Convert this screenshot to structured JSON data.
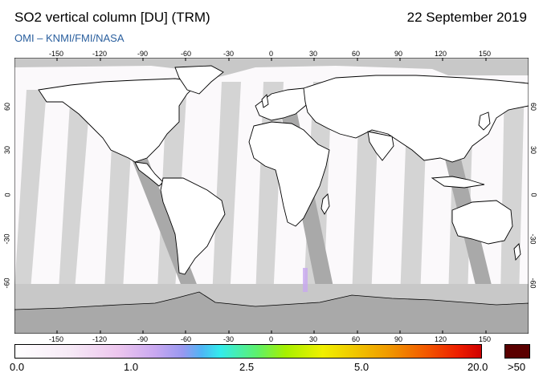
{
  "header": {
    "title": "SO2 vertical column [DU] (TRM)",
    "date": "22 September 2019",
    "credit": "OMI  –  KNMI/FMI/NASA"
  },
  "map": {
    "lon_ticks": [
      "-150",
      "-120",
      "-90",
      "-60",
      "-30",
      "0",
      "30",
      "60",
      "90",
      "120",
      "150"
    ],
    "lat_ticks": [
      "60",
      "30",
      "0",
      "-30",
      "-60"
    ],
    "colors": {
      "land": "#ffffff",
      "swath_gap": "#d4d4d4",
      "coverage_gap_dark": "#a9a9a9",
      "coastline": "#000000"
    }
  },
  "colorbar": {
    "labels": [
      "0.0",
      "1.0",
      "2.5",
      "5.0",
      "20.0"
    ],
    "over_label": ">50",
    "over_color": "#5a0000"
  }
}
